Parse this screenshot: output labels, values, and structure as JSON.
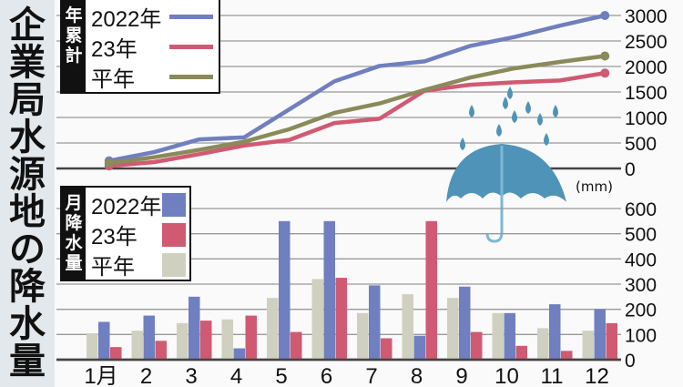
{
  "title": "企業局水源地の降水量",
  "unit": "(mm)",
  "colors": {
    "y2022": "#6f7fbf",
    "y2023": "#d05a72",
    "normal": "#8a8a5a",
    "normal_bar": "#cfd0bf",
    "umbrella": "#4f93b8"
  },
  "icons": {
    "umbrella": "umbrella-with-raindrops-icon"
  },
  "chart_data": [
    {
      "type": "line",
      "label": "年累計",
      "categories": [
        "1月",
        "2",
        "3",
        "4",
        "5",
        "6",
        "7",
        "8",
        "9",
        "10",
        "11",
        "12"
      ],
      "ylim": [
        0,
        3000
      ],
      "yticks": [
        0,
        500,
        1000,
        1500,
        2000,
        2500,
        3000
      ],
      "grid": true,
      "legend_placement": "top-left",
      "series": [
        {
          "name": "2022年",
          "key": "y2022",
          "values": [
            150,
            320,
            570,
            610,
            1160,
            1710,
            2010,
            2100,
            2400,
            2580,
            2800,
            3000
          ]
        },
        {
          "name": "23年",
          "key": "y2023",
          "values": [
            50,
            125,
            280,
            450,
            560,
            890,
            975,
            1525,
            1640,
            1690,
            1725,
            1870
          ]
        },
        {
          "name": "平年",
          "key": "normal",
          "values": [
            105,
            220,
            365,
            525,
            770,
            1090,
            1275,
            1540,
            1780,
            1965,
            2090,
            2205
          ]
        }
      ]
    },
    {
      "type": "bar",
      "label": "月降水量",
      "categories": [
        "1月",
        "2",
        "3",
        "4",
        "5",
        "6",
        "7",
        "8",
        "9",
        "10",
        "11",
        "12"
      ],
      "ylim": [
        0,
        600
      ],
      "yticks": [
        0,
        100,
        200,
        300,
        400,
        500,
        600
      ],
      "grid": true,
      "legend_placement": "top-left",
      "series": [
        {
          "name": "平年",
          "key": "normal_bar",
          "values": [
            105,
            115,
            145,
            160,
            245,
            320,
            185,
            260,
            245,
            185,
            125,
            115
          ]
        },
        {
          "name": "2022年",
          "key": "y2022",
          "values": [
            150,
            175,
            250,
            45,
            550,
            550,
            295,
            95,
            290,
            185,
            220,
            200
          ]
        },
        {
          "name": "23年",
          "key": "y2023",
          "values": [
            50,
            75,
            155,
            175,
            110,
            325,
            85,
            550,
            110,
            55,
            35,
            145
          ]
        }
      ]
    }
  ]
}
